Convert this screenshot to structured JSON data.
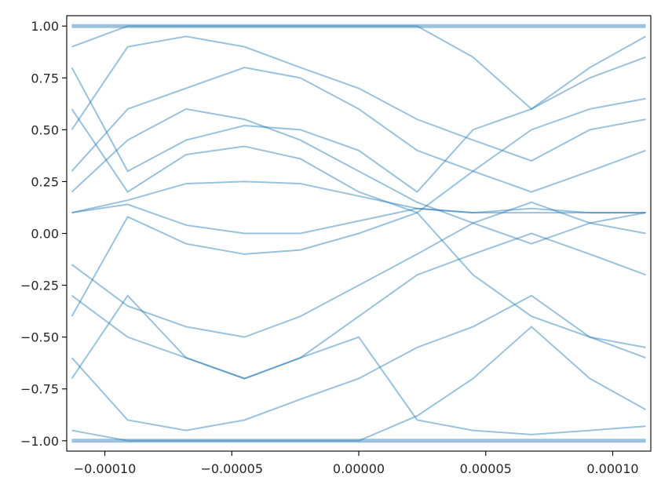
{
  "chart_data": {
    "type": "line",
    "title": "",
    "xlabel": "",
    "ylabel": "",
    "xlim": [
      -0.000115,
      0.000115
    ],
    "ylim": [
      -1.05,
      1.05
    ],
    "grid": false,
    "legend": "none",
    "series_color": "#1f77b4",
    "series_alpha": 0.45,
    "x_ticks": [
      {
        "value": -0.0001,
        "label": "−0.00010"
      },
      {
        "value": -5e-05,
        "label": "−0.00005"
      },
      {
        "value": 0.0,
        "label": "0.00000"
      },
      {
        "value": 5e-05,
        "label": "0.00005"
      },
      {
        "value": 0.0001,
        "label": "0.00010"
      }
    ],
    "y_ticks": [
      {
        "value": 1.0,
        "label": "1.00"
      },
      {
        "value": 0.75,
        "label": "0.75"
      },
      {
        "value": 0.5,
        "label": "0.50"
      },
      {
        "value": 0.25,
        "label": "0.25"
      },
      {
        "value": 0.0,
        "label": "0.00"
      },
      {
        "value": -0.25,
        "label": "−0.25"
      },
      {
        "value": -0.5,
        "label": "−0.50"
      },
      {
        "value": -0.75,
        "label": "−0.75"
      },
      {
        "value": -1.0,
        "label": "−1.00"
      }
    ],
    "x": [
      -0.000113,
      -9.1e-05,
      -6.8e-05,
      -4.5e-05,
      -2.3e-05,
      0.0,
      2.3e-05,
      4.5e-05,
      6.8e-05,
      9.1e-05,
      0.000113
    ],
    "series": [
      {
        "values": [
          1.0,
          1.0,
          1.0,
          1.0,
          1.0,
          1.0,
          1.0,
          1.0,
          1.0,
          1.0,
          1.0
        ]
      },
      {
        "values": [
          -1.0,
          -1.0,
          -1.0,
          -1.0,
          -1.0,
          -1.0,
          -1.0,
          -1.0,
          -1.0,
          -1.0,
          -1.0
        ]
      },
      {
        "values": [
          0.1,
          0.16,
          0.24,
          0.25,
          0.24,
          0.18,
          0.12,
          0.1,
          0.12,
          0.1,
          0.1
        ]
      },
      {
        "values": [
          0.1,
          0.14,
          0.04,
          0.0,
          0.0,
          0.06,
          0.12,
          0.1,
          0.1,
          0.1,
          0.1
        ]
      },
      {
        "values": [
          0.6,
          0.2,
          0.38,
          0.42,
          0.36,
          0.2,
          0.1,
          0.3,
          0.5,
          0.6,
          0.65
        ]
      },
      {
        "values": [
          -0.4,
          0.08,
          -0.05,
          -0.1,
          -0.08,
          0.0,
          0.1,
          -0.2,
          -0.4,
          -0.5,
          -0.6
        ]
      },
      {
        "values": [
          0.8,
          0.3,
          0.45,
          0.52,
          0.5,
          0.4,
          0.2,
          0.5,
          0.6,
          0.75,
          0.85
        ]
      },
      {
        "values": [
          -0.7,
          -0.3,
          -0.6,
          -0.7,
          -0.6,
          -0.5,
          -0.9,
          -0.95,
          -0.97,
          -0.95,
          -0.93
        ]
      },
      {
        "values": [
          0.9,
          1.0,
          1.0,
          1.0,
          1.0,
          1.0,
          1.0,
          0.85,
          0.6,
          0.8,
          0.95
        ]
      },
      {
        "values": [
          -0.95,
          -1.0,
          -1.0,
          -1.0,
          -1.0,
          -1.0,
          -0.88,
          -0.7,
          -0.45,
          -0.7,
          -0.85
        ]
      },
      {
        "values": [
          0.3,
          0.6,
          0.7,
          0.8,
          0.75,
          0.6,
          0.4,
          0.3,
          0.2,
          0.3,
          0.4
        ]
      },
      {
        "values": [
          -0.3,
          -0.5,
          -0.6,
          -0.7,
          -0.6,
          -0.4,
          -0.2,
          -0.1,
          0.0,
          -0.1,
          -0.2
        ]
      },
      {
        "values": [
          0.5,
          0.9,
          0.95,
          0.9,
          0.8,
          0.7,
          0.55,
          0.45,
          0.35,
          0.5,
          0.55
        ]
      },
      {
        "values": [
          -0.6,
          -0.9,
          -0.95,
          -0.9,
          -0.8,
          -0.7,
          -0.55,
          -0.45,
          -0.3,
          -0.5,
          -0.55
        ]
      },
      {
        "values": [
          0.2,
          0.45,
          0.6,
          0.55,
          0.45,
          0.3,
          0.15,
          0.05,
          -0.05,
          0.05,
          0.1
        ]
      },
      {
        "values": [
          -0.15,
          -0.35,
          -0.45,
          -0.5,
          -0.4,
          -0.25,
          -0.1,
          0.05,
          0.15,
          0.05,
          0.0
        ]
      }
    ]
  }
}
